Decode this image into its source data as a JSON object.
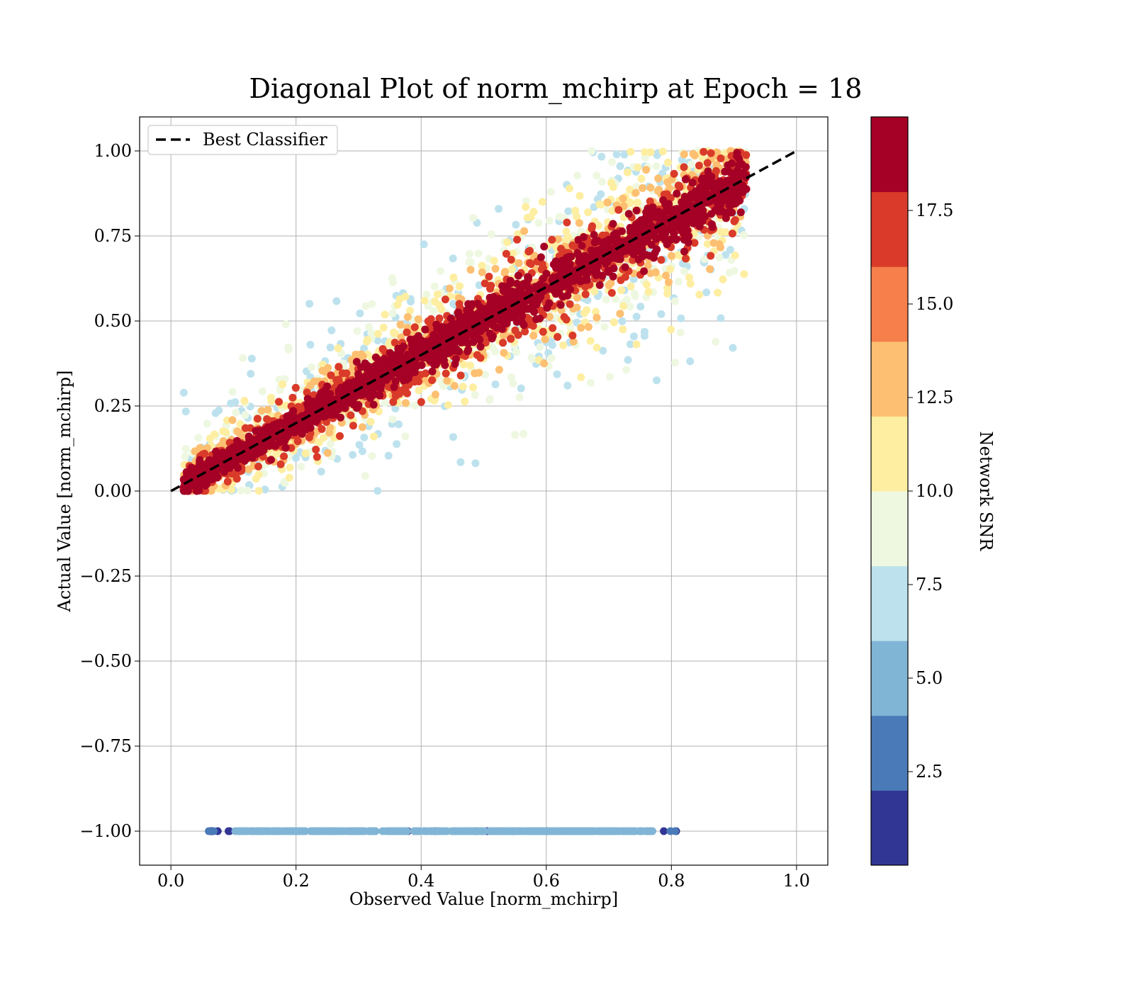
{
  "chart_data": {
    "type": "scatter",
    "title": "Diagonal Plot of norm_mchirp at Epoch = 18",
    "xlabel": "Observed Value [norm_mchirp]",
    "ylabel": "Actual Value [norm_mchirp]",
    "xlim": [
      -0.05,
      1.05
    ],
    "ylim": [
      -1.1,
      1.1
    ],
    "xticks": [
      0.0,
      0.2,
      0.4,
      0.6,
      0.8,
      1.0
    ],
    "xtick_labels": [
      "0.0",
      "0.2",
      "0.4",
      "0.6",
      "0.8",
      "1.0"
    ],
    "yticks": [
      1.0,
      0.75,
      0.5,
      0.25,
      0.0,
      -0.25,
      -0.5,
      -0.75,
      -1.0
    ],
    "ytick_labels": [
      "1.00",
      "0.75",
      "0.50",
      "0.25",
      "0.00",
      "−0.25",
      "−0.50",
      "−0.75",
      "−1.00"
    ],
    "grid": true,
    "legend": {
      "placement": "upper-left",
      "entries": [
        {
          "label": "Best Classifier",
          "style": "dashed",
          "color": "#000000"
        }
      ]
    },
    "reference_line": {
      "label": "Best Classifier",
      "x": [
        0.0,
        1.0
      ],
      "y": [
        0.0,
        1.0
      ],
      "style": "dashed"
    },
    "colorbar": {
      "label": "Network SNR",
      "range": [
        0.0,
        20.0
      ],
      "boundaries": [
        0,
        2,
        4,
        6,
        8,
        10,
        12,
        14,
        16,
        18,
        20
      ],
      "colors": [
        "#313695",
        "#4a7ab7",
        "#81b5d5",
        "#bde2ee",
        "#eef8e1",
        "#feeea1",
        "#fdbf71",
        "#f67f4b",
        "#d93a29",
        "#a50026"
      ],
      "ticks": [
        2.5,
        5.0,
        7.5,
        10.0,
        12.5,
        15.0,
        17.5
      ],
      "tick_labels": [
        "2.5",
        "5.0",
        "7.5",
        "10.0",
        "12.5",
        "15.0",
        "17.5"
      ]
    },
    "series": [
      {
        "description": "diagonal band",
        "x_range": [
          0.02,
          0.92
        ],
        "bands": [
          {
            "snr": 18.5,
            "spread": 0.03
          },
          {
            "snr": 16.5,
            "spread": 0.05
          },
          {
            "snr": 12.5,
            "spread": 0.07
          },
          {
            "snr": 10.5,
            "spread": 0.1
          },
          {
            "snr": 8.5,
            "spread": 0.13
          },
          {
            "snr": 6.5,
            "spread": 0.16
          }
        ]
      },
      {
        "description": "undetected events",
        "y": -1.0,
        "x_range": [
          0.05,
          0.81
        ],
        "snr_values": [
          1.0,
          3.0,
          5.0
        ]
      }
    ]
  }
}
